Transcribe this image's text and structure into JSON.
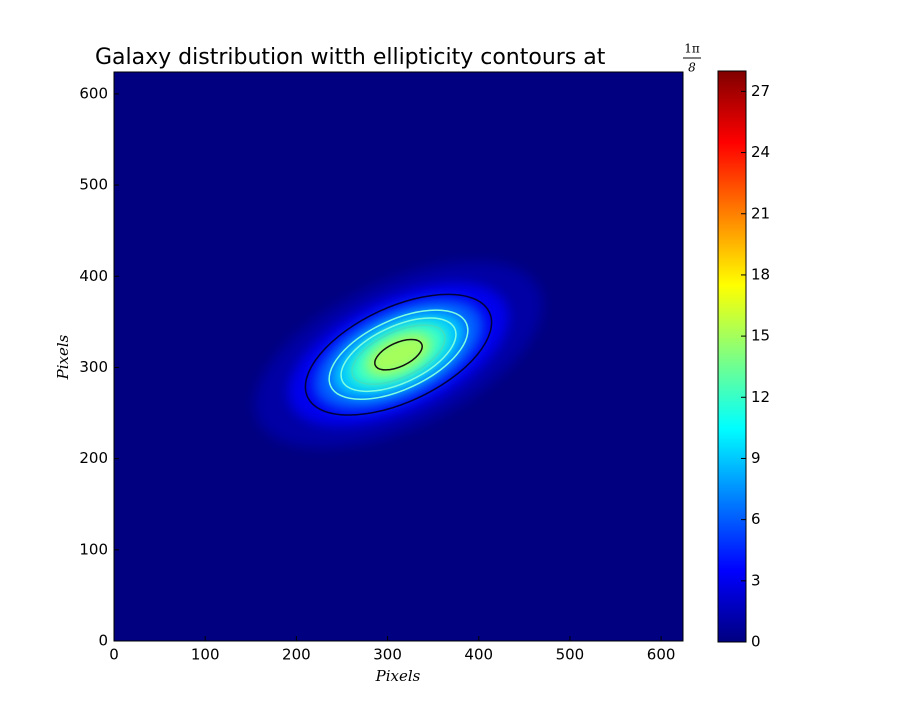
{
  "chart_data": {
    "type": "heatmap",
    "title": "Galaxy distribution witth ellipticity contours at",
    "title_fraction": {
      "numerator": "1π",
      "denominator": "8"
    },
    "xlabel": "Pixels",
    "ylabel": "Pixels",
    "xlim": [
      0,
      624
    ],
    "ylim": [
      0,
      624
    ],
    "xticks": [
      0,
      100,
      200,
      300,
      400,
      500,
      600
    ],
    "yticks": [
      0,
      100,
      200,
      300,
      400,
      500,
      600
    ],
    "colormap": "jet",
    "clim": [
      0,
      28
    ],
    "cticks": [
      0,
      3,
      6,
      9,
      12,
      15,
      18,
      21,
      24,
      27
    ],
    "background_value": 0,
    "galaxy": {
      "center": [
        312,
        314
      ],
      "angle": 25,
      "layers": [
        {
          "value": 1,
          "a": 170,
          "b": 80
        },
        {
          "value": 3,
          "a": 130,
          "b": 62
        },
        {
          "value": 6,
          "a": 100,
          "b": 48
        },
        {
          "value": 9,
          "a": 78,
          "b": 37
        },
        {
          "value": 12,
          "a": 58,
          "b": 28
        },
        {
          "value": 15,
          "a": 38,
          "b": 19
        }
      ]
    },
    "contours": [
      {
        "a": 110,
        "b": 52,
        "color": "#00003a"
      },
      {
        "a": 82,
        "b": 38,
        "color": "#7fffe0"
      },
      {
        "a": 68,
        "b": 31,
        "color": "#7fffe0"
      },
      {
        "a": 55,
        "b": 25,
        "color": "#40e0c0"
      },
      {
        "a": 28,
        "b": 13,
        "color": "#111111"
      }
    ]
  }
}
